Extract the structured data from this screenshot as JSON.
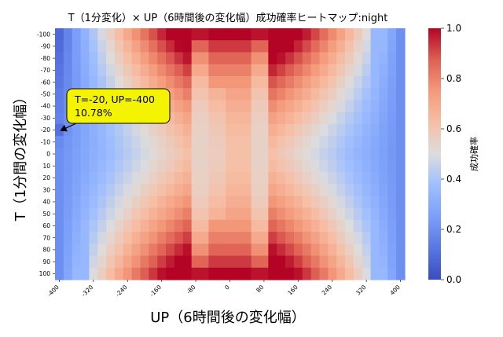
{
  "chart_data": {
    "type": "heatmap",
    "title": "T（1分変化）× UP（6時間後の変化幅）成功確率ヒートマップ:night",
    "xlabel": "UP（6時間後の変化幅）",
    "ylabel": "T（1分間の変化幅）",
    "colorbar_label": "成功確率",
    "colormap": "coolwarm",
    "value_range": [
      0.0,
      1.0
    ],
    "colorbar_ticks": [
      "0.0",
      "0.2",
      "0.4",
      "0.6",
      "0.8",
      "1.0"
    ],
    "x_values": [
      -400,
      -380,
      -360,
      -340,
      -320,
      -300,
      -280,
      -260,
      -240,
      -220,
      -200,
      -180,
      -160,
      -140,
      -120,
      -100,
      -80,
      -60,
      -40,
      -20,
      0,
      20,
      40,
      60,
      80,
      100,
      120,
      140,
      160,
      180,
      200,
      220,
      240,
      260,
      280,
      300,
      320,
      340,
      360,
      380,
      400
    ],
    "x_tick_labels": [
      "-400",
      "-320",
      "-240",
      "-160",
      "-80",
      "0",
      "80",
      "160",
      "240",
      "320",
      "400"
    ],
    "y_values": [
      -100,
      -90,
      -80,
      -70,
      -60,
      -50,
      -40,
      -30,
      -20,
      -10,
      0,
      10,
      20,
      30,
      40,
      50,
      60,
      70,
      80,
      90,
      100
    ],
    "y_tick_labels": [
      "-100",
      "-90",
      "-80",
      "-70",
      "-60",
      "-50",
      "-40",
      "-30",
      "-20",
      "-10",
      "0",
      "10",
      "20",
      "30",
      "40",
      "50",
      "60",
      "70",
      "80",
      "90",
      "100"
    ],
    "annotation": {
      "line1": "T=-20, UP=-400",
      "line2": "10.78%",
      "target_x": -400,
      "target_y": -20,
      "target_value": 0.1078,
      "box_color": "#f4f400"
    }
  }
}
